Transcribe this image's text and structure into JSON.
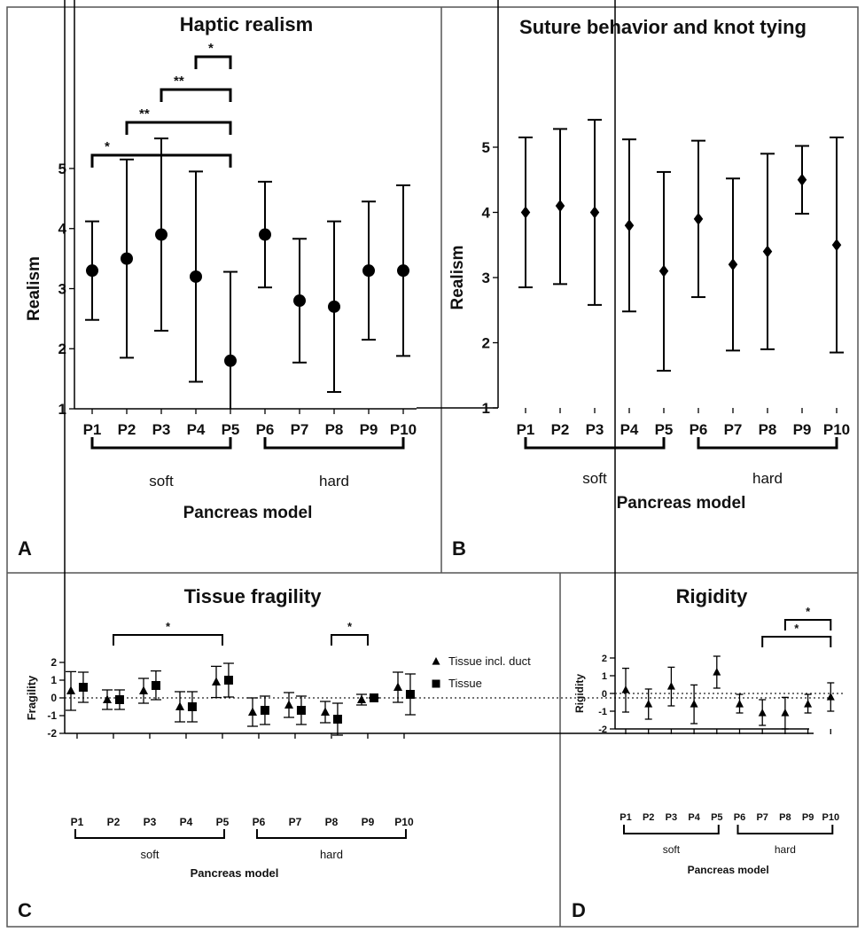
{
  "chart_data": [
    {
      "panel": "A",
      "type": "scatter",
      "title": "Haptic realism",
      "xlabel": "Pancreas model",
      "ylabel": "Realism",
      "ylim": [
        1,
        5.5
      ],
      "yticks": [
        1,
        2,
        3,
        4,
        5
      ],
      "categories": [
        "P1",
        "P2",
        "P3",
        "P4",
        "P5",
        "P6",
        "P7",
        "P8",
        "P9",
        "P10"
      ],
      "groups": [
        {
          "label": "soft",
          "from": 0,
          "to": 4
        },
        {
          "label": "hard",
          "from": 5,
          "to": 9
        }
      ],
      "series": [
        {
          "marker": "circle",
          "values": [
            3.3,
            3.5,
            3.9,
            3.2,
            1.8,
            3.9,
            2.8,
            2.7,
            3.3,
            3.3
          ],
          "lower": [
            2.48,
            1.85,
            2.3,
            1.45,
            0.3,
            3.02,
            1.77,
            1.28,
            2.15,
            1.88
          ],
          "upper": [
            4.12,
            5.15,
            5.5,
            4.95,
            3.28,
            4.78,
            3.83,
            4.12,
            4.45,
            4.72
          ]
        }
      ],
      "significance": [
        {
          "from": 0,
          "to": 4,
          "label": "*"
        },
        {
          "from": 1,
          "to": 4,
          "label": "**"
        },
        {
          "from": 2,
          "to": 4,
          "label": "**"
        },
        {
          "from": 3,
          "to": 4,
          "label": "*"
        }
      ],
      "grid": false
    },
    {
      "panel": "B",
      "type": "scatter",
      "title": "Suture behavior and knot tying",
      "xlabel": "Pancreas model",
      "ylabel": "Realism",
      "ylim": [
        1,
        5.5
      ],
      "yticks": [
        1,
        2,
        3,
        4,
        5
      ],
      "categories": [
        "P1",
        "P2",
        "P3",
        "P4",
        "P5",
        "P6",
        "P7",
        "P8",
        "P9",
        "P10"
      ],
      "groups": [
        {
          "label": "soft",
          "from": 0,
          "to": 4
        },
        {
          "label": "hard",
          "from": 5,
          "to": 9
        }
      ],
      "series": [
        {
          "marker": "diamond",
          "values": [
            4.0,
            4.1,
            4.0,
            3.8,
            3.1,
            3.9,
            3.2,
            3.4,
            4.5,
            3.5
          ],
          "lower": [
            2.85,
            2.9,
            2.58,
            2.48,
            1.57,
            2.7,
            1.88,
            1.9,
            3.98,
            1.85
          ],
          "upper": [
            5.15,
            5.28,
            5.42,
            5.12,
            4.62,
            5.1,
            4.52,
            4.9,
            5.02,
            5.15
          ]
        }
      ],
      "significance": [],
      "grid": false
    },
    {
      "panel": "C",
      "type": "scatter",
      "title": "Tissue fragility",
      "xlabel": "Pancreas model",
      "ylabel": "Fragility",
      "ylim": [
        -2,
        2
      ],
      "yticks": [
        -2,
        -1,
        0,
        1,
        2
      ],
      "categories": [
        "P1",
        "P2",
        "P3",
        "P4",
        "P5",
        "P6",
        "P7",
        "P8",
        "P9",
        "P10"
      ],
      "groups": [
        {
          "label": "soft",
          "from": 0,
          "to": 4
        },
        {
          "label": "hard",
          "from": 5,
          "to": 9
        }
      ],
      "legend_position": "right",
      "series": [
        {
          "name": "Tissue incl. duct",
          "marker": "triangle",
          "values": [
            0.4,
            -0.1,
            0.4,
            -0.5,
            0.9,
            -0.8,
            -0.4,
            -0.8,
            -0.1,
            0.6
          ],
          "lower": [
            -0.7,
            -0.65,
            -0.3,
            -1.35,
            0.02,
            -1.6,
            -1.1,
            -1.4,
            -0.4,
            -0.25
          ],
          "upper": [
            1.48,
            0.45,
            1.1,
            0.35,
            1.78,
            0.0,
            0.3,
            -0.2,
            0.2,
            1.45
          ]
        },
        {
          "name": "Tissue",
          "marker": "square",
          "values": [
            0.6,
            -0.1,
            0.7,
            -0.5,
            1.0,
            -0.7,
            -0.7,
            -1.2,
            0.0,
            0.2
          ],
          "lower": [
            -0.25,
            -0.65,
            -0.1,
            -1.35,
            0.05,
            -1.5,
            -1.5,
            -2.1,
            0.0,
            -0.95
          ],
          "upper": [
            1.45,
            0.45,
            1.52,
            0.35,
            1.95,
            0.1,
            0.1,
            -0.3,
            0.0,
            1.35
          ]
        }
      ],
      "significance": [
        {
          "from": 1,
          "to": 4,
          "label": "*"
        },
        {
          "from": 7,
          "to": 8,
          "label": "*"
        }
      ],
      "reference_line": 0,
      "grid": false
    },
    {
      "panel": "D",
      "type": "scatter",
      "title": "Rigidity",
      "xlabel": "Pancreas model",
      "ylabel": "Rigidity",
      "ylim": [
        -2,
        2
      ],
      "yticks": [
        -2,
        -1,
        0,
        1,
        2
      ],
      "categories": [
        "P1",
        "P2",
        "P3",
        "P4",
        "P5",
        "P6",
        "P7",
        "P8",
        "P9",
        "P10"
      ],
      "groups": [
        {
          "label": "soft",
          "from": 0,
          "to": 4
        },
        {
          "label": "hard",
          "from": 5,
          "to": 9
        }
      ],
      "series": [
        {
          "marker": "triangle",
          "values": [
            0.2,
            -0.6,
            0.4,
            -0.6,
            1.2,
            -0.6,
            -1.1,
            -1.1,
            -0.6,
            -0.2
          ],
          "lower": [
            -1.05,
            -1.45,
            -0.7,
            -1.7,
            0.3,
            -1.1,
            -1.8,
            -2.0,
            -1.1,
            -1.0
          ],
          "upper": [
            1.42,
            0.25,
            1.48,
            0.48,
            2.1,
            -0.05,
            -0.35,
            -0.22,
            -0.05,
            0.6
          ]
        }
      ],
      "significance": [
        {
          "from": 6,
          "to": 9,
          "label": "*"
        },
        {
          "from": 7,
          "to": 9,
          "label": "*"
        }
      ],
      "reference_line": 0,
      "grid": false
    }
  ]
}
